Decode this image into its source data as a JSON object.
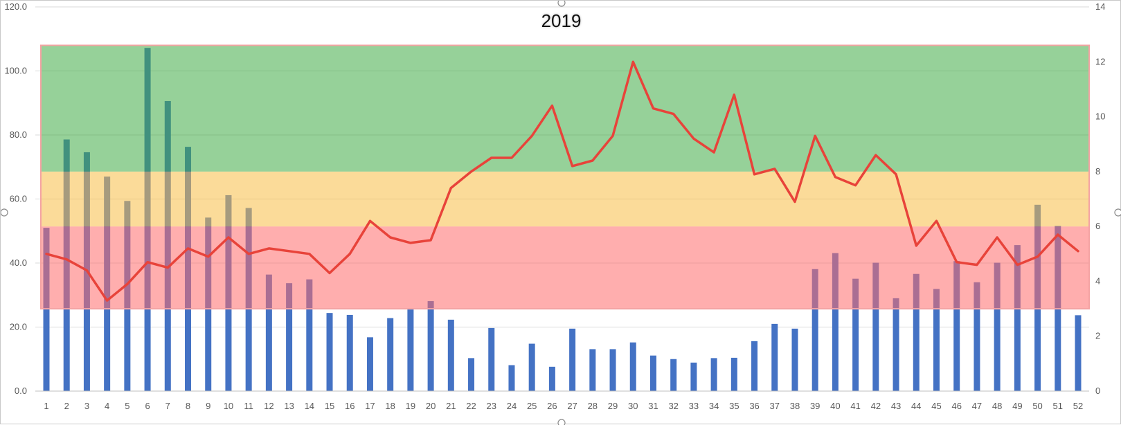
{
  "chart_data": {
    "type": "bar",
    "title": "2019",
    "categories": [
      "1",
      "2",
      "3",
      "4",
      "5",
      "6",
      "7",
      "8",
      "9",
      "10",
      "11",
      "12",
      "13",
      "14",
      "15",
      "16",
      "17",
      "18",
      "19",
      "20",
      "21",
      "22",
      "23",
      "24",
      "25",
      "26",
      "27",
      "28",
      "29",
      "30",
      "31",
      "32",
      "33",
      "34",
      "35",
      "36",
      "37",
      "38",
      "39",
      "40",
      "41",
      "42",
      "43",
      "44",
      "45",
      "46",
      "47",
      "48",
      "49",
      "50",
      "51",
      "52"
    ],
    "series": [
      {
        "axis": "left",
        "type": "bar",
        "color": "#4472c4",
        "values": [
          51.0,
          78.6,
          74.6,
          67.0,
          59.4,
          107.2,
          90.6,
          76.3,
          54.2,
          61.2,
          57.2,
          36.4,
          33.7,
          34.9,
          24.4,
          23.8,
          16.8,
          22.8,
          25.5,
          28.1,
          22.3,
          10.3,
          19.7,
          8.1,
          14.8,
          7.6,
          19.5,
          13.1,
          13.1,
          15.2,
          11.1,
          10.0,
          8.9,
          10.3,
          10.4,
          15.6,
          21.0,
          19.5,
          38.1,
          43.1,
          35.1,
          40.1,
          29.0,
          36.6,
          31.9,
          40.6,
          34.0,
          40.1,
          45.6,
          58.2,
          51.6,
          23.7
        ]
      },
      {
        "axis": "right",
        "type": "line",
        "color": "#e8433a",
        "values": [
          5.0,
          4.8,
          4.4,
          3.3,
          3.9,
          4.7,
          4.5,
          5.2,
          4.9,
          5.6,
          5.0,
          5.2,
          5.1,
          5.0,
          4.3,
          5.0,
          6.2,
          5.6,
          5.4,
          5.5,
          7.4,
          8.0,
          8.5,
          8.5,
          9.3,
          10.4,
          8.2,
          8.4,
          9.3,
          12.0,
          10.3,
          10.1,
          9.2,
          8.7,
          10.8,
          7.9,
          8.1,
          6.9,
          9.3,
          7.8,
          7.5,
          8.6,
          7.9,
          5.3,
          6.2,
          4.7,
          4.6,
          5.6,
          4.6,
          4.9,
          5.7,
          5.1
        ]
      }
    ],
    "bands": [
      {
        "name": "red",
        "from": 3.0,
        "to": 6.0,
        "color": "#ff6b6b"
      },
      {
        "name": "orange",
        "from": 6.0,
        "to": 8.0,
        "color": "#f8bd45"
      },
      {
        "name": "green",
        "from": 8.0,
        "to": 12.6,
        "color": "#3fac46"
      }
    ],
    "ylim": [
      0,
      120
    ],
    "y_ticks": [
      "0.0",
      "20.0",
      "40.0",
      "60.0",
      "80.0",
      "100.0",
      "120.0"
    ],
    "ylim_right": [
      0,
      14
    ],
    "y2_ticks": [
      "0",
      "2",
      "4",
      "6",
      "8",
      "10",
      "12",
      "14"
    ],
    "grid": true,
    "xlabel": "",
    "ylabel": ""
  }
}
